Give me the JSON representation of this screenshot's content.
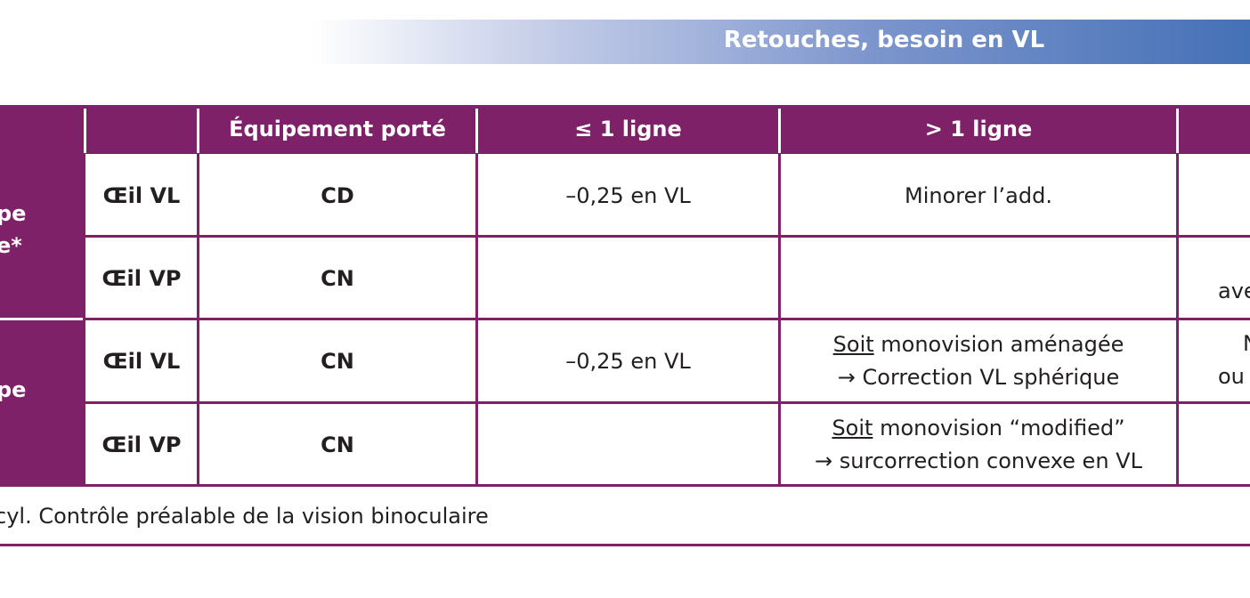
{
  "banner": {
    "title": "Retouches, besoin en VL"
  },
  "table": {
    "header": [
      "Équipement porté",
      "≤ 1 ligne",
      "> 1 ligne"
    ],
    "groups": [
      [
        "pe",
        "e*"
      ],
      [
        "pe"
      ]
    ],
    "rows": [
      {
        "eye": "Œil VL",
        "equipment": "CD",
        "le1": "–0,25 en VL",
        "gt1": {
          "line1": "Minorer l’add."
        }
      },
      {
        "eye": "Œil VP",
        "equipment": "CN",
        "last": [
          "ave"
        ]
      },
      {
        "eye": "Œil VL",
        "equipment": "CN",
        "le1": "–0,25 en VL",
        "gt1": {
          "underline": "Soit",
          "line1": " monovision aménagée",
          "line2": "→ Correction VL sphérique"
        },
        "last": [
          "N",
          "ou"
        ]
      },
      {
        "eye": "Œil VP",
        "equipment": "CN",
        "gt1": {
          "underline": "Soit",
          "line1": " monovision “modified”",
          "line2": "→ surcorrection convexe en VL"
        }
      }
    ]
  },
  "footnote": "cyl. Contrôle préalable de la vision binoculaire"
}
